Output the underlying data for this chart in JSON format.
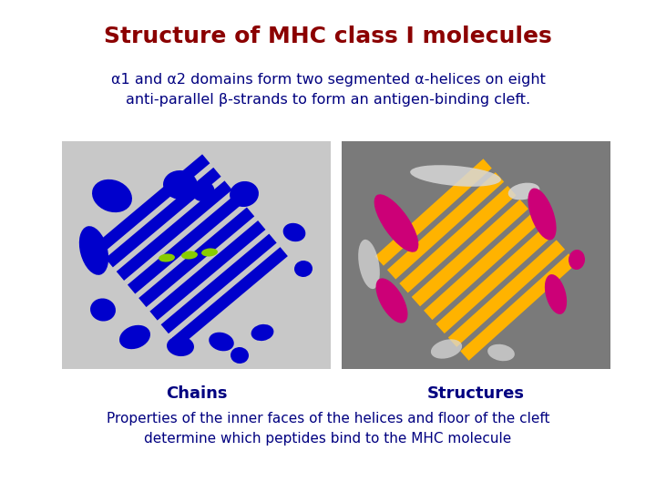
{
  "title": "Structure of MHC class I molecules",
  "title_color": "#8B0000",
  "title_fontsize": 18,
  "subtitle_line1": "α1 and α2 domains form two segmented α-helices on eight",
  "subtitle_line2": "anti-parallel β-strands to form an antigen-binding cleft.",
  "subtitle_color": "#000080",
  "subtitle_fontsize": 11.5,
  "label_left": "Chains",
  "label_right": "Structures",
  "label_color": "#000080",
  "label_fontsize": 13,
  "footer_line1": "Properties of the inner faces of the helices and floor of the cleft",
  "footer_line2": "determine which peptides bind to the MHC molecule",
  "footer_color": "#000080",
  "footer_fontsize": 11,
  "bg_color": "#ffffff",
  "image_bg_left": "#c8c8c8",
  "image_bg_right": "#7a7a7a",
  "blue_color": "#0000CC",
  "green_color": "#88CC00",
  "yellow_color": "#FFB300",
  "pink_color": "#CC0077",
  "white_color": "#D8D8D8"
}
